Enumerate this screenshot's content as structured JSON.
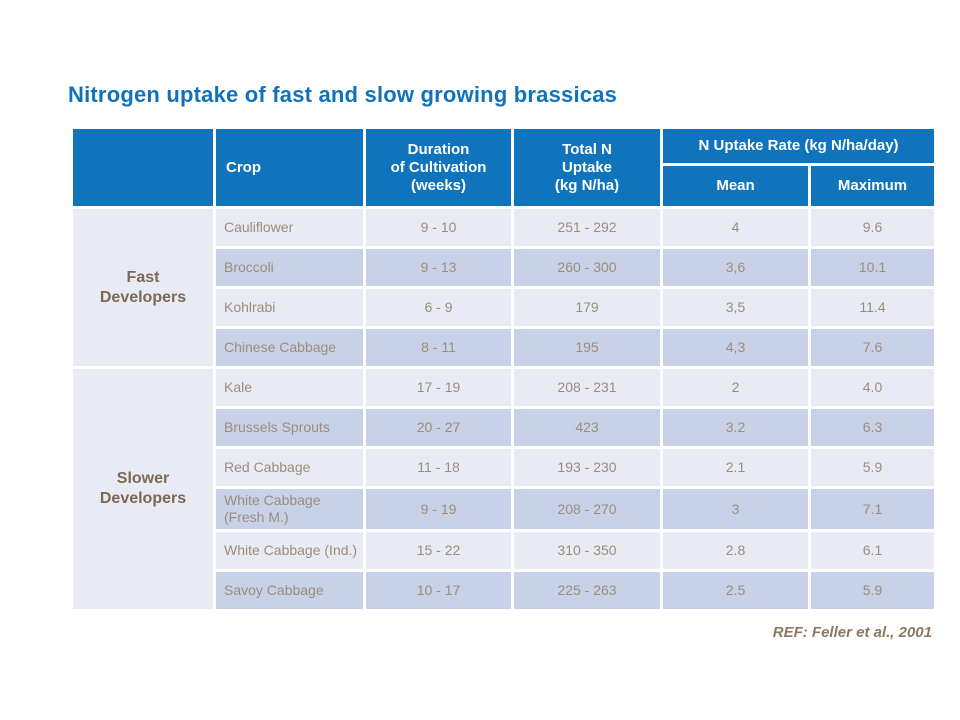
{
  "page": {
    "title": "Nitrogen uptake of fast and slow growing brassicas",
    "reference": "REF: Feller et al., 2001"
  },
  "colors": {
    "title_blue": "#1272B9",
    "header_blue": "#0F74BB",
    "row_light": "#E9EBF4",
    "row_dark": "#C7D1E7",
    "body_text": "#9C8D7B",
    "group_text": "#7B6951",
    "ref_text": "#8A7963"
  },
  "table": {
    "headers": {
      "corner": "",
      "crop": "Crop",
      "duration": "Duration\nof Cultivation\n(weeks)",
      "total_n": "Total N\nUptake\n(kg N/ha)",
      "uptake_rate": "N Uptake Rate (kg N/ha/day)",
      "mean": "Mean",
      "maximum": "Maximum"
    },
    "groups": [
      {
        "label": "Fast\nDevelopers",
        "rows": [
          {
            "crop": "Cauliflower",
            "duration": "9 - 10",
            "total_n": "251 - 292",
            "mean": "4",
            "maximum": "9.6"
          },
          {
            "crop": "Broccoli",
            "duration": "9 - 13",
            "total_n": "260 - 300",
            "mean": "3,6",
            "maximum": "10.1"
          },
          {
            "crop": "Kohlrabi",
            "duration": "6 - 9",
            "total_n": "179",
            "mean": "3,5",
            "maximum": "11.4"
          },
          {
            "crop": "Chinese Cabbage",
            "duration": "8 - 11",
            "total_n": "195",
            "mean": "4,3",
            "maximum": "7.6"
          }
        ]
      },
      {
        "label": "Slower\nDevelopers",
        "rows": [
          {
            "crop": "Kale",
            "duration": "17 - 19",
            "total_n": "208 - 231",
            "mean": "2",
            "maximum": "4.0"
          },
          {
            "crop": "Brussels Sprouts",
            "duration": "20 - 27",
            "total_n": "423",
            "mean": "3.2",
            "maximum": "6.3"
          },
          {
            "crop": "Red Cabbage",
            "duration": "11 - 18",
            "total_n": "193 - 230",
            "mean": "2.1",
            "maximum": "5.9"
          },
          {
            "crop": "White Cabbage (Fresh M.)",
            "duration": "9 - 19",
            "total_n": "208 - 270",
            "mean": "3",
            "maximum": "7.1"
          },
          {
            "crop": "White Cabbage (Ind.)",
            "duration": "15 - 22",
            "total_n": "310 - 350",
            "mean": "2.8",
            "maximum": "6.1"
          },
          {
            "crop": "Savoy Cabbage",
            "duration": "10 - 17",
            "total_n": "225 - 263",
            "mean": "2.5",
            "maximum": "5.9"
          }
        ]
      }
    ]
  }
}
